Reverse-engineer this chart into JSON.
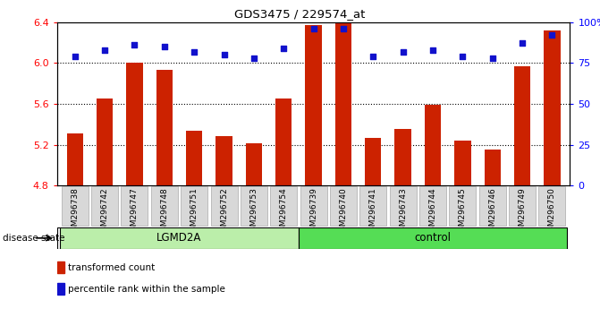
{
  "title": "GDS3475 / 229574_at",
  "samples": [
    "GSM296738",
    "GSM296742",
    "GSM296747",
    "GSM296748",
    "GSM296751",
    "GSM296752",
    "GSM296753",
    "GSM296754",
    "GSM296739",
    "GSM296740",
    "GSM296741",
    "GSM296743",
    "GSM296744",
    "GSM296745",
    "GSM296746",
    "GSM296749",
    "GSM296750"
  ],
  "bar_values": [
    5.31,
    5.65,
    6.0,
    5.93,
    5.34,
    5.28,
    5.21,
    5.65,
    6.37,
    6.4,
    5.27,
    5.35,
    5.59,
    5.24,
    5.15,
    5.97,
    6.32
  ],
  "percentile_values": [
    79,
    83,
    86,
    85,
    82,
    80,
    78,
    84,
    96,
    96,
    79,
    82,
    83,
    79,
    78,
    87,
    92
  ],
  "groups": [
    {
      "label": "LGMD2A",
      "start": 0,
      "end": 8,
      "color": "#bbeeaa"
    },
    {
      "label": "control",
      "start": 8,
      "end": 17,
      "color": "#55dd55"
    }
  ],
  "bar_color": "#cc2200",
  "dot_color": "#1111cc",
  "ylim": [
    4.8,
    6.4
  ],
  "yticks": [
    4.8,
    5.2,
    5.6,
    6.0,
    6.4
  ],
  "right_ylim": [
    0,
    100
  ],
  "right_yticks": [
    0,
    25,
    50,
    75,
    100
  ],
  "right_yticklabels": [
    "0",
    "25",
    "50",
    "75",
    "100%"
  ],
  "grid_values": [
    5.2,
    5.6,
    6.0
  ],
  "bg_color": "#d8d8d8",
  "legend_items": [
    {
      "color": "#cc2200",
      "label": "transformed count"
    },
    {
      "color": "#1111cc",
      "label": "percentile rank within the sample"
    }
  ]
}
